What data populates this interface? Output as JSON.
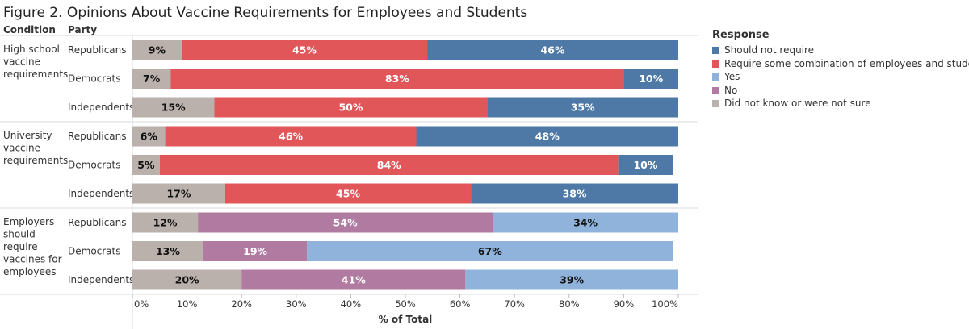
{
  "title": "Figure 2. Opinions About Vaccine Requirements for Employees and Students",
  "column_headers": {
    "condition": "Condition",
    "party": "Party"
  },
  "legend": {
    "title": "Response",
    "placement": "right",
    "items": [
      {
        "label": "Should not require",
        "color": "#4e79a7"
      },
      {
        "label": "Require some combination of employees and students",
        "color": "#e15759"
      },
      {
        "label": "Yes",
        "color": "#8fb3da"
      },
      {
        "label": "No",
        "color": "#b07aa1"
      },
      {
        "label": "Did not know or were not sure",
        "color": "#bab0ac"
      }
    ]
  },
  "chart_data": {
    "type": "bar",
    "orientation": "horizontal",
    "stacked": true,
    "xlabel": "% of Total",
    "xlim": [
      0,
      100
    ],
    "x_ticks": [
      "0%",
      "10%",
      "20%",
      "30%",
      "40%",
      "50%",
      "60%",
      "70%",
      "80%",
      "90%",
      "100%"
    ],
    "grid": false,
    "groups": [
      {
        "condition": [
          "High school",
          "vaccine",
          "requirements"
        ],
        "rows": [
          {
            "party": "Republicans",
            "segments": [
              {
                "response": "Did not know or were not sure",
                "value": 9
              },
              {
                "response": "Require some combination of employees and students",
                "value": 45
              },
              {
                "response": "Should not require",
                "value": 46
              }
            ]
          },
          {
            "party": "Democrats",
            "segments": [
              {
                "response": "Did not know or were not sure",
                "value": 7
              },
              {
                "response": "Require some combination of employees and students",
                "value": 83
              },
              {
                "response": "Should not require",
                "value": 10
              }
            ]
          },
          {
            "party": "Independents",
            "segments": [
              {
                "response": "Did not know or were not sure",
                "value": 15
              },
              {
                "response": "Require some combination of employees and students",
                "value": 50
              },
              {
                "response": "Should not require",
                "value": 35
              }
            ]
          }
        ]
      },
      {
        "condition": [
          "University",
          "vaccine",
          "requirements"
        ],
        "rows": [
          {
            "party": "Republicans",
            "segments": [
              {
                "response": "Did not know or were not sure",
                "value": 6
              },
              {
                "response": "Require some combination of employees and students",
                "value": 46
              },
              {
                "response": "Should not require",
                "value": 48
              }
            ]
          },
          {
            "party": "Democrats",
            "segments": [
              {
                "response": "Did not know or were not sure",
                "value": 5
              },
              {
                "response": "Require some combination of employees and students",
                "value": 84
              },
              {
                "response": "Should not require",
                "value": 10
              }
            ]
          },
          {
            "party": "Independents",
            "segments": [
              {
                "response": "Did not know or were not sure",
                "value": 17
              },
              {
                "response": "Require some combination of employees and students",
                "value": 45
              },
              {
                "response": "Should not require",
                "value": 38
              }
            ]
          }
        ]
      },
      {
        "condition": [
          "Employers",
          "should",
          "require",
          "vaccines for",
          "employees"
        ],
        "rows": [
          {
            "party": "Republicans",
            "segments": [
              {
                "response": "Did not know or were not sure",
                "value": 12
              },
              {
                "response": "No",
                "value": 54
              },
              {
                "response": "Yes",
                "value": 34
              }
            ]
          },
          {
            "party": "Democrats",
            "segments": [
              {
                "response": "Did not know or were not sure",
                "value": 13
              },
              {
                "response": "No",
                "value": 19
              },
              {
                "response": "Yes",
                "value": 67
              }
            ]
          },
          {
            "party": "Independents",
            "segments": [
              {
                "response": "Did not know or were not sure",
                "value": 20
              },
              {
                "response": "No",
                "value": 41
              },
              {
                "response": "Yes",
                "value": 39
              }
            ]
          }
        ]
      }
    ]
  }
}
